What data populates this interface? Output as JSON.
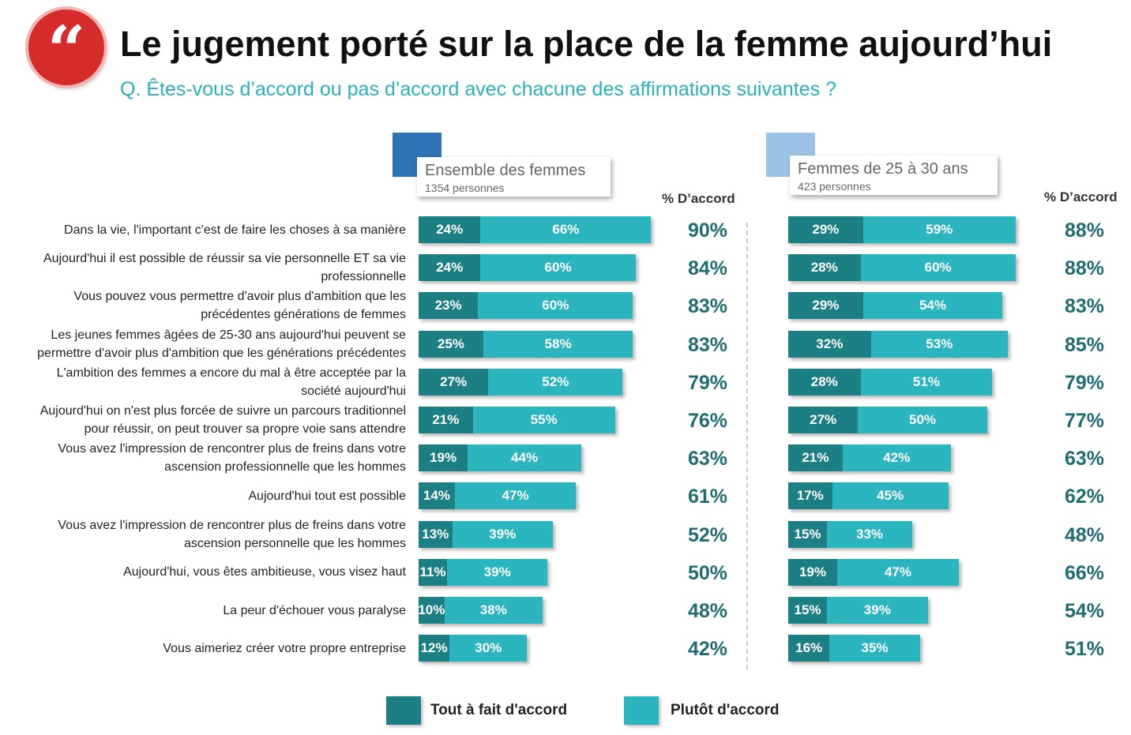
{
  "header": {
    "quote_glyph": "“",
    "title": "Le jugement porté sur la place de la femme aujourd’hui",
    "subtitle": "Q. Êtes-vous d’accord ou pas d’accord avec chacune des affirmations suivantes ?"
  },
  "colors": {
    "accent_red": "#d52b2b",
    "tout_a_fait": "#1b7f84",
    "plutot": "#2bb5bf",
    "panel1_square": "#2e74b5",
    "panel2_square": "#9dc3e6",
    "total_text": "#1f6d72"
  },
  "legend": {
    "tout_a_fait": "Tout à fait d'accord",
    "plutot": "Plutôt d'accord"
  },
  "chart_data": {
    "type": "bar",
    "stacked": true,
    "orientation": "horizontal",
    "title": "Le jugement porté sur la place de la femme aujourd’hui",
    "total_column_label": "% D’accord",
    "categories": [
      "Dans la vie, l'important c'est de faire les choses à sa manière",
      "Aujourd'hui il est possible de réussir sa vie personnelle ET sa vie professionnelle",
      "Vous pouvez vous permettre d'avoir plus d'ambition que les précédentes générations de femmes",
      "Les jeunes femmes âgées de 25-30 ans aujourd'hui peuvent se permettre d'avoir plus d'ambition que les générations précédentes",
      "L'ambition des femmes a encore du mal à être acceptée par la société aujourd'hui",
      "Aujourd'hui on n'est plus forcée de suivre un parcours traditionnel pour réussir, on peut trouver sa propre voie sans attendre",
      "Vous avez l'impression de rencontrer plus de freins dans votre ascension professionnelle que les hommes",
      "Aujourd'hui tout est possible",
      "Vous avez l'impression de rencontrer plus de freins dans votre ascension personnelle que les hommes",
      "Aujourd'hui, vous êtes ambitieuse, vous visez haut",
      "La peur d'échouer vous paralyse",
      "Vous aimeriez créer votre propre entreprise"
    ],
    "category_lines": [
      [
        "Dans la vie, l'important c'est de faire les choses à sa manière"
      ],
      [
        "Aujourd'hui il est possible de réussir sa vie personnelle ET sa vie",
        "professionnelle"
      ],
      [
        "Vous pouvez vous permettre d'avoir plus d'ambition que les",
        "précédentes générations de femmes"
      ],
      [
        "Les jeunes femmes âgées de 25-30 ans aujourd'hui peuvent se",
        "permettre d'avoir plus d'ambition que les générations précédentes"
      ],
      [
        "L'ambition des femmes a encore du mal à être acceptée par la",
        "société aujourd'hui"
      ],
      [
        "Aujourd'hui on n'est plus forcée de suivre un parcours traditionnel",
        "pour réussir, on peut trouver sa propre voie sans attendre"
      ],
      [
        "Vous avez l'impression de rencontrer plus de freins dans votre",
        "ascension professionnelle que les hommes"
      ],
      [
        "Aujourd'hui tout est possible"
      ],
      [
        "Vous avez l'impression de rencontrer plus de freins dans votre",
        "ascension personnelle que les hommes"
      ],
      [
        "Aujourd'hui, vous êtes ambitieuse, vous visez haut"
      ],
      [
        "La peur d'échouer vous paralyse"
      ],
      [
        "Vous aimeriez créer votre propre entreprise"
      ]
    ],
    "panels": [
      {
        "name": "Ensemble des femmes",
        "n": "1354 personnes",
        "series": [
          {
            "name": "Tout à fait d'accord",
            "values": [
              24,
              24,
              23,
              25,
              27,
              21,
              19,
              14,
              13,
              11,
              10,
              12
            ]
          },
          {
            "name": "Plutôt d'accord",
            "values": [
              66,
              60,
              60,
              58,
              52,
              55,
              44,
              47,
              39,
              39,
              38,
              30
            ]
          }
        ],
        "totals": [
          90,
          84,
          83,
          83,
          79,
          76,
          63,
          61,
          52,
          50,
          48,
          42
        ]
      },
      {
        "name": "Femmes de 25 à 30 ans",
        "n": "423 personnes",
        "series": [
          {
            "name": "Tout à fait d'accord",
            "values": [
              29,
              28,
              29,
              32,
              28,
              27,
              21,
              17,
              15,
              19,
              15,
              16
            ]
          },
          {
            "name": "Plutôt d'accord",
            "values": [
              59,
              60,
              54,
              53,
              51,
              50,
              42,
              45,
              33,
              47,
              39,
              35
            ]
          }
        ],
        "totals": [
          88,
          88,
          83,
          85,
          79,
          77,
          63,
          62,
          48,
          66,
          54,
          51
        ]
      }
    ]
  }
}
